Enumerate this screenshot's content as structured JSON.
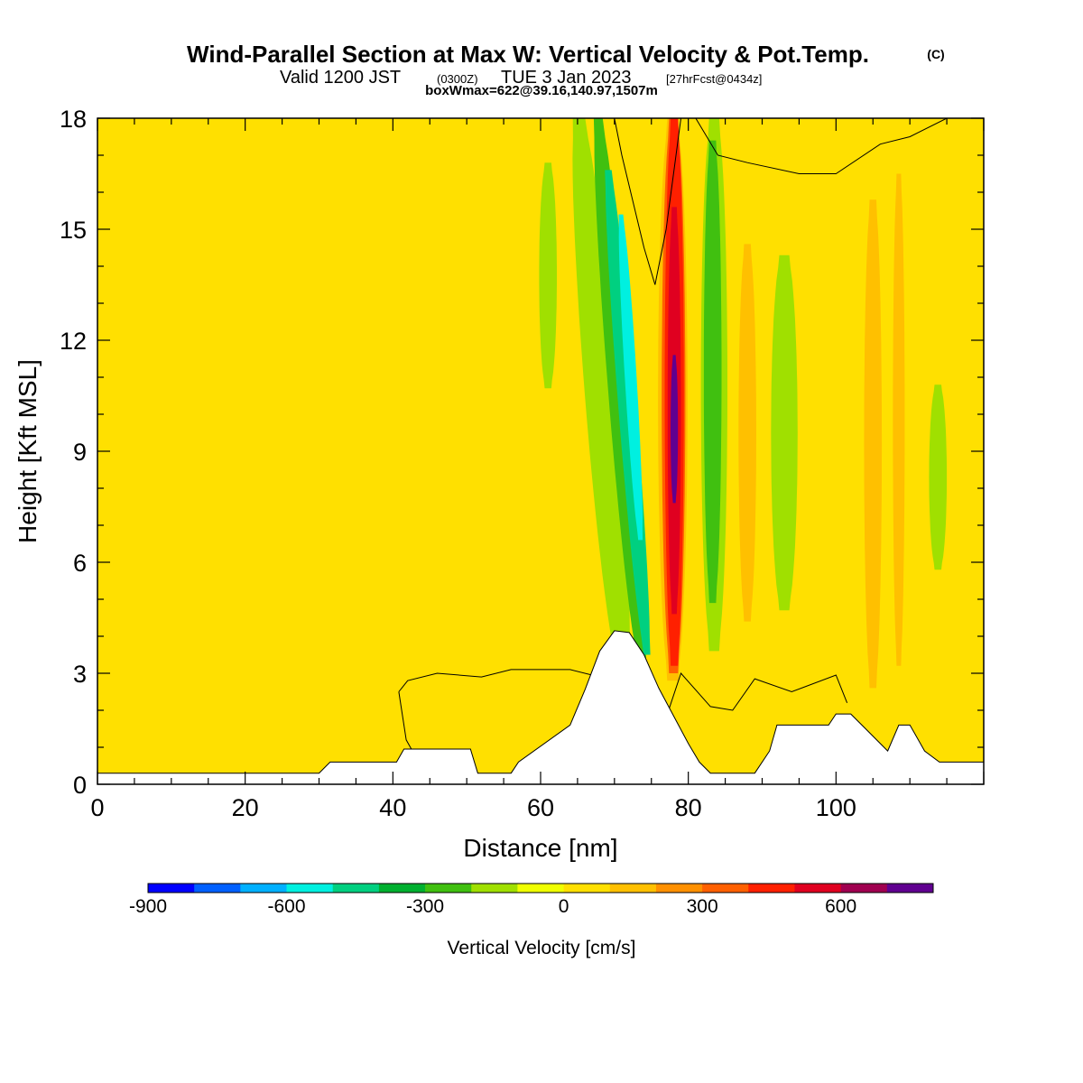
{
  "header": {
    "title": "Wind-Parallel Section at Max W: Vertical Velocity & Pot.Temp.",
    "copyright": "(C)",
    "valid_prefix": "Valid 1200 JST",
    "valid_utc": "(0300Z)",
    "valid_date": "TUE 3 Jan 2023",
    "forecast": "[27hrFcst@0434z]",
    "box_info": "boxWmax=622@39.16,140.97,1507m"
  },
  "chart_data": {
    "type": "heatmap",
    "xlabel": "Distance [nm]",
    "ylabel": "Height [Kft MSL]",
    "xlim": [
      0,
      120
    ],
    "ylim": [
      0,
      18
    ],
    "x_ticks": [
      0,
      20,
      40,
      60,
      80,
      100
    ],
    "y_ticks": [
      0,
      3,
      6,
      9,
      12,
      15,
      18
    ],
    "x_tick_labels": [
      "0",
      "20",
      "40",
      "60",
      "80",
      "100"
    ],
    "y_tick_labels": [
      "0",
      "3",
      "6",
      "9",
      "12",
      "15",
      "18"
    ],
    "background_level_color": "#ffe000",
    "colorbar": {
      "label": "Vertical Velocity [cm/s]",
      "colors": [
        "#0000ff",
        "#0060ff",
        "#00b0ff",
        "#00f0e0",
        "#00d080",
        "#00b030",
        "#40c010",
        "#a0e000",
        "#f0ff00",
        "#ffe000",
        "#ffc000",
        "#ff9000",
        "#ff6000",
        "#ff2000",
        "#e00020",
        "#a00050",
        "#600090"
      ],
      "tick_values": [
        -900,
        -600,
        -300,
        0,
        300,
        600
      ],
      "tick_labels": [
        "-900",
        "-600",
        "-300",
        "0",
        "300",
        "600"
      ]
    },
    "velocity_bands": [
      {
        "x": 68.8,
        "half_width": 2.2,
        "top": 18,
        "bottom": 3.0,
        "slope": 0.4,
        "color": "#a0e000"
      },
      {
        "x": 71.4,
        "half_width": 1.6,
        "top": 18,
        "bottom": 3.2,
        "slope": 0.4,
        "color": "#40c010"
      },
      {
        "x": 72.2,
        "half_width": 1.2,
        "top": 16.6,
        "bottom": 3.5,
        "slope": 0.4,
        "color": "#00d080"
      },
      {
        "x": 72.8,
        "half_width": 0.8,
        "top": 15.4,
        "bottom": 6.6,
        "slope": 0.3,
        "color": "#00f0e0"
      },
      {
        "x": 77.9,
        "half_width": 2.0,
        "top": 18,
        "bottom": 2.8,
        "slope": 0,
        "color": "#ffc000"
      },
      {
        "x": 78.0,
        "half_width": 1.6,
        "top": 18,
        "bottom": 3.0,
        "slope": 0,
        "color": "#ff6000"
      },
      {
        "x": 78.1,
        "half_width": 1.3,
        "top": 18,
        "bottom": 3.2,
        "slope": 0,
        "color": "#ff2000"
      },
      {
        "x": 78.1,
        "half_width": 0.9,
        "top": 15.6,
        "bottom": 4.6,
        "slope": 0,
        "color": "#e00020"
      },
      {
        "x": 78.1,
        "half_width": 0.5,
        "top": 11.6,
        "bottom": 7.6,
        "slope": 0,
        "color": "#600090"
      },
      {
        "x": 83.5,
        "half_width": 1.8,
        "top": 18,
        "bottom": 3.6,
        "slope": 0,
        "color": "#a0e000"
      },
      {
        "x": 83.3,
        "half_width": 1.2,
        "top": 17.4,
        "bottom": 4.9,
        "slope": 0,
        "color": "#40c010"
      },
      {
        "x": 61.0,
        "half_width": 1.2,
        "top": 16.8,
        "bottom": 10.7,
        "slope": 0,
        "color": "#a0e000"
      },
      {
        "x": 93.0,
        "half_width": 1.8,
        "top": 14.3,
        "bottom": 4.7,
        "slope": 0,
        "color": "#a0e000"
      },
      {
        "x": 113.8,
        "half_width": 1.2,
        "top": 10.8,
        "bottom": 5.8,
        "slope": 0,
        "color": "#a0e000"
      },
      {
        "x": 88.0,
        "half_width": 1.2,
        "top": 14.6,
        "bottom": 4.4,
        "slope": 0,
        "color": "#ffc000"
      },
      {
        "x": 105.0,
        "half_width": 1.2,
        "top": 15.8,
        "bottom": 2.6,
        "slope": 0,
        "color": "#ffc000"
      },
      {
        "x": 108.5,
        "half_width": 0.8,
        "top": 16.5,
        "bottom": 3.2,
        "slope": 0,
        "color": "#ffc000"
      }
    ],
    "terrain": [
      [
        0,
        0.3
      ],
      [
        30,
        0.3
      ],
      [
        31.5,
        0.6
      ],
      [
        40.5,
        0.6
      ],
      [
        41.5,
        0.95
      ],
      [
        50.5,
        0.95
      ],
      [
        51.5,
        0.3
      ],
      [
        56,
        0.3
      ],
      [
        57,
        0.6
      ],
      [
        64,
        1.6
      ],
      [
        66,
        2.55
      ],
      [
        68,
        3.6
      ],
      [
        70,
        4.15
      ],
      [
        72,
        4.1
      ],
      [
        74,
        3.5
      ],
      [
        76,
        2.6
      ],
      [
        78,
        1.85
      ],
      [
        80,
        1.1
      ],
      [
        81.5,
        0.6
      ],
      [
        83,
        0.3
      ],
      [
        89,
        0.3
      ],
      [
        91,
        0.9
      ],
      [
        92,
        1.6
      ],
      [
        99,
        1.6
      ],
      [
        100,
        1.9
      ],
      [
        102,
        1.9
      ],
      [
        104,
        1.5
      ],
      [
        107,
        0.9
      ],
      [
        108.5,
        1.6
      ],
      [
        110,
        1.6
      ],
      [
        112,
        0.9
      ],
      [
        114,
        0.6
      ],
      [
        120,
        0.6
      ]
    ],
    "theta_contours": [
      [
        [
          75.5,
          13.5
        ],
        [
          74,
          14.5
        ],
        [
          71,
          17
        ],
        [
          70,
          18
        ]
      ],
      [
        [
          75.5,
          13.5
        ],
        [
          77,
          15
        ],
        [
          79,
          18
        ]
      ],
      [
        [
          81,
          18
        ],
        [
          84,
          17
        ],
        [
          88,
          16.8
        ],
        [
          95,
          16.5
        ],
        [
          100,
          16.5
        ],
        [
          106,
          17.3
        ],
        [
          110,
          17.5
        ],
        [
          115,
          18
        ]
      ],
      [
        [
          40.8,
          2.5
        ],
        [
          42,
          2.8
        ],
        [
          46,
          3.0
        ],
        [
          52,
          2.9
        ],
        [
          56,
          3.1
        ],
        [
          64,
          3.1
        ],
        [
          68,
          2.9
        ]
      ],
      [
        [
          40.8,
          2.5
        ],
        [
          41.8,
          1.2
        ],
        [
          42.5,
          0.95
        ]
      ],
      [
        [
          77,
          1.8
        ],
        [
          79,
          3.0
        ],
        [
          83,
          2.1
        ],
        [
          86,
          2.0
        ],
        [
          89,
          2.85
        ],
        [
          94,
          2.5
        ],
        [
          100,
          2.95
        ],
        [
          101.5,
          2.2
        ]
      ]
    ]
  }
}
